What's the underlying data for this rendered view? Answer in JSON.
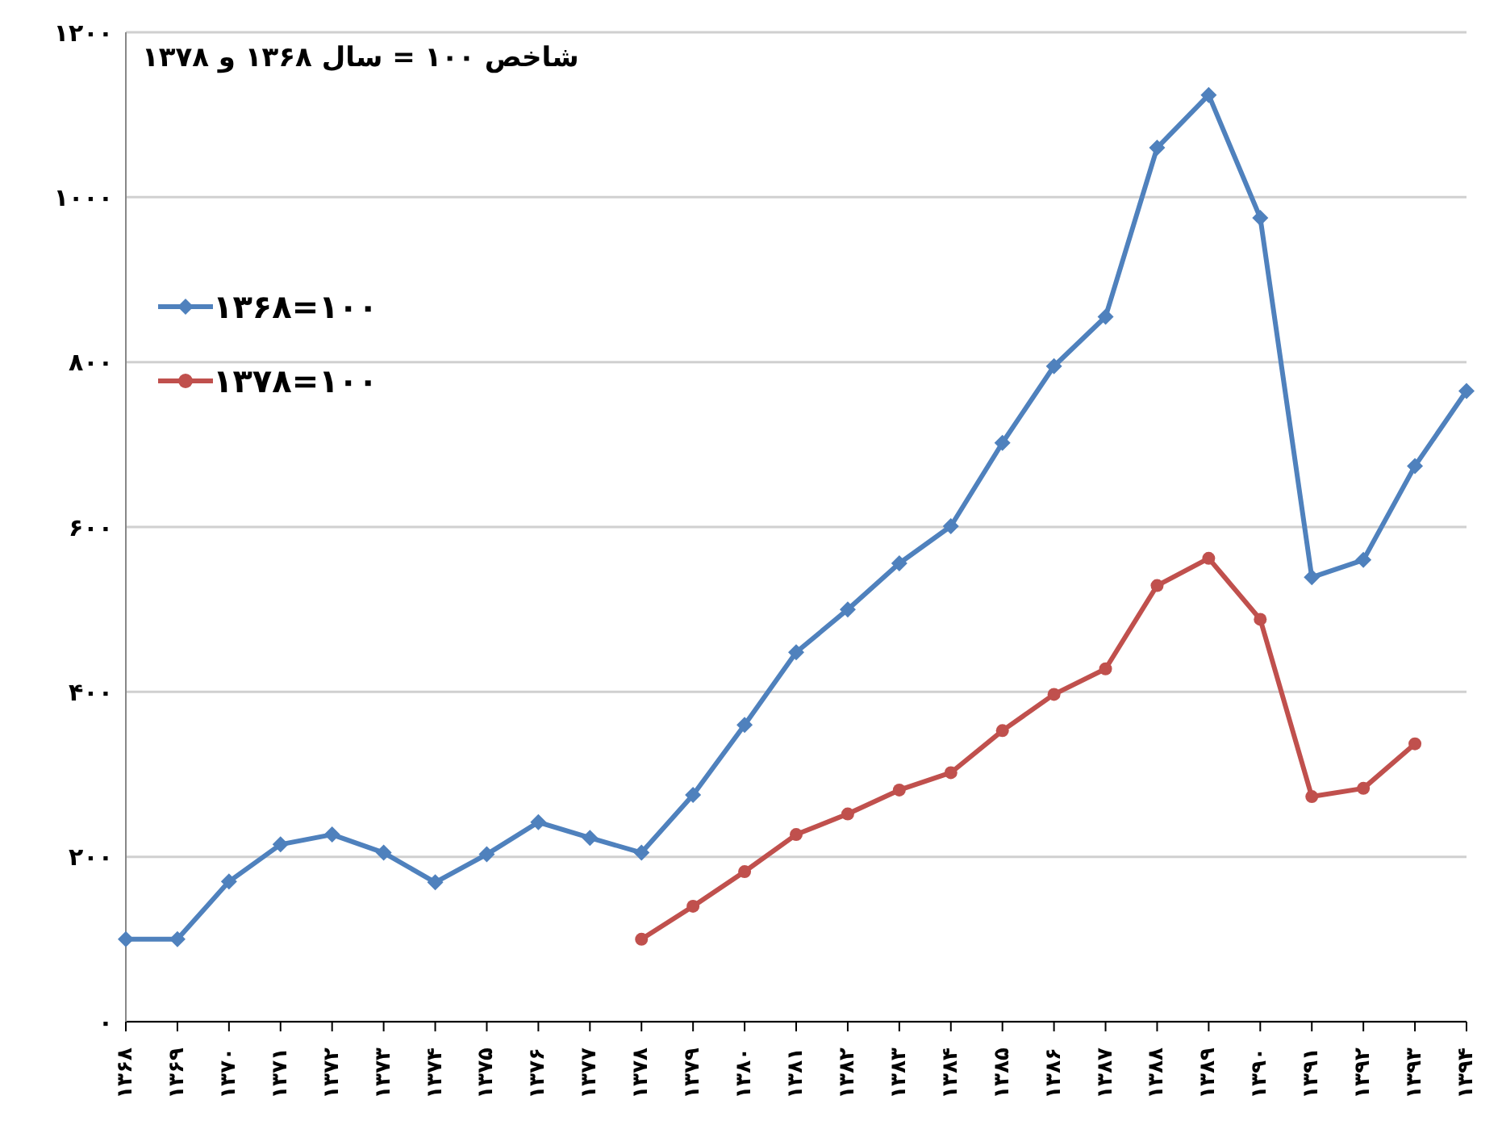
{
  "chart_data": {
    "type": "line",
    "annotations": [
      "شاخص ۱۰۰ = سال ۱۳۶۸ و ۱۳۷۸"
    ],
    "categories": [
      "۱۳۶۸",
      "۱۳۶۹",
      "۱۳۷۰",
      "۱۳۷۱",
      "۱۳۷۲",
      "۱۳۷۳",
      "۱۳۷۴",
      "۱۳۷۵",
      "۱۳۷۶",
      "۱۳۷۷",
      "۱۳۷۸",
      "۱۳۷۹",
      "۱۳۸۰",
      "۱۳۸۱",
      "۱۳۸۲",
      "۱۳۸۳",
      "۱۳۸۴",
      "۱۳۸۵",
      "۱۳۸۶",
      "۱۳۸۷",
      "۱۳۸۸",
      "۱۳۸۹",
      "۱۳۹۰",
      "۱۳۹۱",
      "۱۳۹۲",
      "۱۳۹۳",
      "۱۳۹۴"
    ],
    "series": [
      {
        "name": "۱۳۶۸=۱۰۰",
        "color": "#4f81bd",
        "marker": "diamond",
        "values": [
          100,
          100,
          170,
          215,
          227,
          205,
          169,
          203,
          242,
          223,
          205,
          275,
          360,
          448,
          500,
          556,
          601,
          702,
          795,
          855,
          1060,
          1124,
          975,
          539,
          560,
          674,
          765
        ]
      },
      {
        "name": "۱۳۷۸=۱۰۰",
        "color": "#c0504d",
        "marker": "circle",
        "values": [
          null,
          null,
          null,
          null,
          null,
          null,
          null,
          null,
          null,
          null,
          100,
          140,
          182,
          227,
          252,
          281,
          302,
          353,
          397,
          428,
          529,
          562,
          488,
          273,
          283,
          337,
          null
        ]
      }
    ],
    "ylim": [
      0,
      1200
    ],
    "yticks": [
      {
        "value": 0,
        "label": "۰"
      },
      {
        "value": 200,
        "label": "۲۰۰"
      },
      {
        "value": 400,
        "label": "۴۰۰"
      },
      {
        "value": 600,
        "label": "۶۰۰"
      },
      {
        "value": 800,
        "label": "۸۰۰"
      },
      {
        "value": 1000,
        "label": "۱۰۰۰"
      },
      {
        "value": 1200,
        "label": "۱۲۰۰"
      }
    ],
    "grid": "y",
    "legend": "top left",
    "line_style": "solid"
  }
}
